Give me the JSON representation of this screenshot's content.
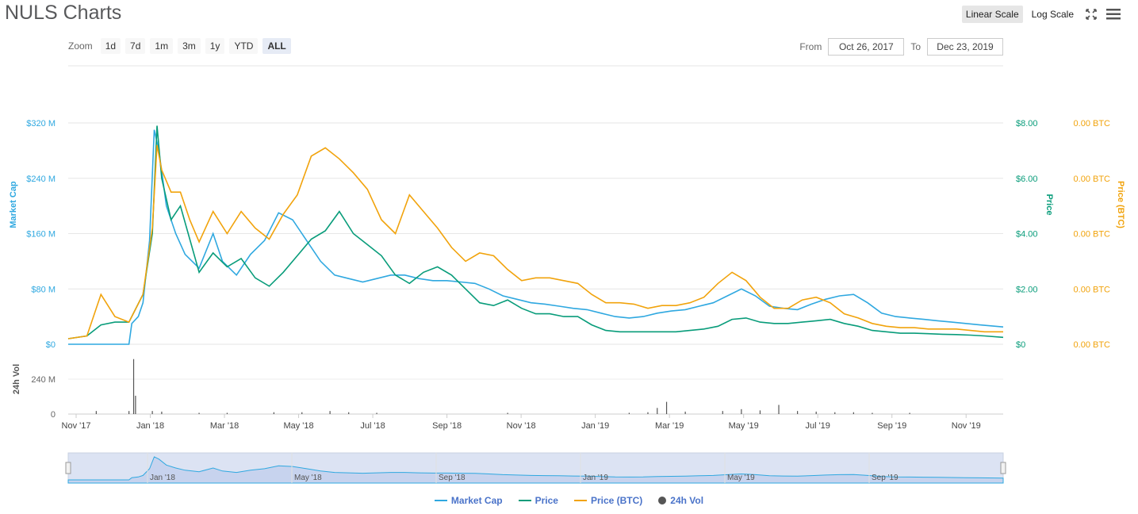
{
  "header": {
    "title": "NULS Charts"
  },
  "toolbar": {
    "linear_label": "Linear Scale",
    "log_label": "Log Scale",
    "fullscreen_icon": "expand-icon",
    "menu_icon": "hamburger-icon"
  },
  "zoom": {
    "label": "Zoom",
    "buttons": [
      "1d",
      "7d",
      "1m",
      "3m",
      "1y",
      "YTD",
      "ALL"
    ],
    "active": "ALL"
  },
  "range": {
    "from_label": "From",
    "from_value": "Oct 26, 2017",
    "to_label": "To",
    "to_value": "Dec 23, 2019"
  },
  "colors": {
    "market_cap": "#2fa8e0",
    "price": "#089c7a",
    "price_btc": "#f1a30c",
    "volume": "#555555"
  },
  "chart_data": {
    "type": "line",
    "x_ticks": [
      "Nov '17",
      "Jan '18",
      "Mar '18",
      "May '18",
      "Jul '18",
      "Sep '18",
      "Nov '18",
      "Jan '19",
      "Mar '19",
      "May '19",
      "Jul '19",
      "Sep '19",
      "Nov '19"
    ],
    "y_left": {
      "label": "Market Cap",
      "ticks": [
        "$0",
        "$80 M",
        "$160 M",
        "$240 M",
        "$320 M"
      ],
      "range": [
        0,
        320
      ]
    },
    "y_right_price": {
      "label": "Price",
      "ticks": [
        "$0",
        "$2.00",
        "$4.00",
        "$6.00",
        "$8.00"
      ],
      "range": [
        0,
        8
      ]
    },
    "y_right_btc": {
      "label": "Price (BTC)",
      "ticks": [
        "0.00 BTC",
        "0.00 BTC",
        "0.00 BTC",
        "0.00 BTC",
        "0.00 BTC"
      ]
    },
    "volume_axis": {
      "label": "24h Vol",
      "ticks": [
        "0",
        "240 M"
      ]
    },
    "navigator_ticks": [
      "Jan '18",
      "May '18",
      "Sep '18",
      "Jan '19",
      "May '19",
      "Sep '19"
    ],
    "series": [
      {
        "name": "Market Cap",
        "axis": "left",
        "points": [
          [
            0,
            0
          ],
          [
            0.05,
            0
          ],
          [
            0.065,
            0
          ],
          [
            0.068,
            30
          ],
          [
            0.075,
            40
          ],
          [
            0.08,
            60
          ],
          [
            0.087,
            150
          ],
          [
            0.092,
            310
          ],
          [
            0.097,
            280
          ],
          [
            0.105,
            200
          ],
          [
            0.115,
            160
          ],
          [
            0.125,
            130
          ],
          [
            0.14,
            110
          ],
          [
            0.155,
            160
          ],
          [
            0.165,
            120
          ],
          [
            0.18,
            100
          ],
          [
            0.195,
            130
          ],
          [
            0.21,
            150
          ],
          [
            0.225,
            190
          ],
          [
            0.24,
            180
          ],
          [
            0.255,
            150
          ],
          [
            0.27,
            120
          ],
          [
            0.285,
            100
          ],
          [
            0.3,
            95
          ],
          [
            0.315,
            90
          ],
          [
            0.33,
            95
          ],
          [
            0.345,
            100
          ],
          [
            0.36,
            100
          ],
          [
            0.375,
            95
          ],
          [
            0.39,
            92
          ],
          [
            0.405,
            92
          ],
          [
            0.42,
            90
          ],
          [
            0.435,
            88
          ],
          [
            0.45,
            80
          ],
          [
            0.465,
            70
          ],
          [
            0.48,
            65
          ],
          [
            0.495,
            60
          ],
          [
            0.51,
            58
          ],
          [
            0.525,
            55
          ],
          [
            0.54,
            52
          ],
          [
            0.555,
            50
          ],
          [
            0.57,
            45
          ],
          [
            0.585,
            40
          ],
          [
            0.6,
            38
          ],
          [
            0.615,
            40
          ],
          [
            0.63,
            45
          ],
          [
            0.645,
            48
          ],
          [
            0.66,
            50
          ],
          [
            0.675,
            55
          ],
          [
            0.69,
            60
          ],
          [
            0.705,
            70
          ],
          [
            0.72,
            80
          ],
          [
            0.735,
            70
          ],
          [
            0.75,
            55
          ],
          [
            0.765,
            52
          ],
          [
            0.78,
            50
          ],
          [
            0.795,
            58
          ],
          [
            0.81,
            65
          ],
          [
            0.825,
            70
          ],
          [
            0.84,
            72
          ],
          [
            0.855,
            60
          ],
          [
            0.87,
            45
          ],
          [
            0.885,
            40
          ],
          [
            0.9,
            38
          ],
          [
            0.915,
            36
          ],
          [
            0.93,
            34
          ],
          [
            0.945,
            32
          ],
          [
            0.96,
            30
          ],
          [
            0.975,
            28
          ],
          [
            1,
            25
          ]
        ]
      },
      {
        "name": "Price",
        "axis": "right",
        "points": [
          [
            0,
            0.2
          ],
          [
            0.02,
            0.3
          ],
          [
            0.035,
            0.7
          ],
          [
            0.05,
            0.8
          ],
          [
            0.065,
            0.8
          ],
          [
            0.08,
            1.8
          ],
          [
            0.09,
            4.0
          ],
          [
            0.095,
            7.9
          ],
          [
            0.1,
            6.0
          ],
          [
            0.11,
            4.5
          ],
          [
            0.12,
            5.0
          ],
          [
            0.13,
            3.8
          ],
          [
            0.14,
            2.6
          ],
          [
            0.155,
            3.3
          ],
          [
            0.17,
            2.8
          ],
          [
            0.185,
            3.1
          ],
          [
            0.2,
            2.4
          ],
          [
            0.215,
            2.1
          ],
          [
            0.23,
            2.6
          ],
          [
            0.245,
            3.2
          ],
          [
            0.26,
            3.8
          ],
          [
            0.275,
            4.1
          ],
          [
            0.29,
            4.8
          ],
          [
            0.305,
            4.0
          ],
          [
            0.32,
            3.6
          ],
          [
            0.335,
            3.2
          ],
          [
            0.35,
            2.5
          ],
          [
            0.365,
            2.2
          ],
          [
            0.38,
            2.6
          ],
          [
            0.395,
            2.8
          ],
          [
            0.41,
            2.5
          ],
          [
            0.425,
            2.0
          ],
          [
            0.44,
            1.5
          ],
          [
            0.455,
            1.4
          ],
          [
            0.47,
            1.6
          ],
          [
            0.485,
            1.3
          ],
          [
            0.5,
            1.1
          ],
          [
            0.515,
            1.1
          ],
          [
            0.53,
            1.0
          ],
          [
            0.545,
            1.0
          ],
          [
            0.56,
            0.7
          ],
          [
            0.575,
            0.5
          ],
          [
            0.59,
            0.45
          ],
          [
            0.605,
            0.45
          ],
          [
            0.62,
            0.45
          ],
          [
            0.635,
            0.45
          ],
          [
            0.65,
            0.45
          ],
          [
            0.665,
            0.5
          ],
          [
            0.68,
            0.55
          ],
          [
            0.695,
            0.65
          ],
          [
            0.71,
            0.9
          ],
          [
            0.725,
            0.95
          ],
          [
            0.74,
            0.8
          ],
          [
            0.755,
            0.75
          ],
          [
            0.77,
            0.75
          ],
          [
            0.785,
            0.8
          ],
          [
            0.8,
            0.85
          ],
          [
            0.815,
            0.9
          ],
          [
            0.83,
            0.75
          ],
          [
            0.845,
            0.65
          ],
          [
            0.86,
            0.5
          ],
          [
            0.875,
            0.45
          ],
          [
            0.89,
            0.4
          ],
          [
            0.905,
            0.4
          ],
          [
            0.92,
            0.38
          ],
          [
            0.935,
            0.36
          ],
          [
            0.95,
            0.35
          ],
          [
            0.965,
            0.33
          ],
          [
            0.98,
            0.3
          ],
          [
            1,
            0.25
          ]
        ]
      },
      {
        "name": "Price (BTC)",
        "axis": "right",
        "points": [
          [
            0,
            0.2
          ],
          [
            0.02,
            0.3
          ],
          [
            0.035,
            1.8
          ],
          [
            0.05,
            1.0
          ],
          [
            0.065,
            0.8
          ],
          [
            0.08,
            1.8
          ],
          [
            0.09,
            4.2
          ],
          [
            0.095,
            7.2
          ],
          [
            0.1,
            6.3
          ],
          [
            0.11,
            5.5
          ],
          [
            0.12,
            5.5
          ],
          [
            0.13,
            4.5
          ],
          [
            0.14,
            3.7
          ],
          [
            0.155,
            4.8
          ],
          [
            0.17,
            4.0
          ],
          [
            0.185,
            4.8
          ],
          [
            0.2,
            4.2
          ],
          [
            0.215,
            3.8
          ],
          [
            0.23,
            4.7
          ],
          [
            0.245,
            5.4
          ],
          [
            0.26,
            6.8
          ],
          [
            0.275,
            7.1
          ],
          [
            0.29,
            6.7
          ],
          [
            0.305,
            6.2
          ],
          [
            0.32,
            5.6
          ],
          [
            0.335,
            4.5
          ],
          [
            0.35,
            4.0
          ],
          [
            0.365,
            5.4
          ],
          [
            0.38,
            4.8
          ],
          [
            0.395,
            4.2
          ],
          [
            0.41,
            3.5
          ],
          [
            0.425,
            3.0
          ],
          [
            0.44,
            3.3
          ],
          [
            0.455,
            3.2
          ],
          [
            0.47,
            2.7
          ],
          [
            0.485,
            2.3
          ],
          [
            0.5,
            2.4
          ],
          [
            0.515,
            2.4
          ],
          [
            0.53,
            2.3
          ],
          [
            0.545,
            2.2
          ],
          [
            0.56,
            1.8
          ],
          [
            0.575,
            1.5
          ],
          [
            0.59,
            1.5
          ],
          [
            0.605,
            1.45
          ],
          [
            0.62,
            1.3
          ],
          [
            0.635,
            1.4
          ],
          [
            0.65,
            1.4
          ],
          [
            0.665,
            1.5
          ],
          [
            0.68,
            1.7
          ],
          [
            0.695,
            2.2
          ],
          [
            0.71,
            2.6
          ],
          [
            0.725,
            2.3
          ],
          [
            0.74,
            1.7
          ],
          [
            0.755,
            1.3
          ],
          [
            0.77,
            1.3
          ],
          [
            0.785,
            1.6
          ],
          [
            0.8,
            1.7
          ],
          [
            0.815,
            1.5
          ],
          [
            0.83,
            1.1
          ],
          [
            0.845,
            0.95
          ],
          [
            0.86,
            0.75
          ],
          [
            0.875,
            0.65
          ],
          [
            0.89,
            0.6
          ],
          [
            0.905,
            0.6
          ],
          [
            0.92,
            0.55
          ],
          [
            0.935,
            0.55
          ],
          [
            0.95,
            0.55
          ],
          [
            0.965,
            0.5
          ],
          [
            0.98,
            0.45
          ],
          [
            1,
            0.45
          ]
        ]
      }
    ],
    "volume": [
      [
        0.03,
        0.05
      ],
      [
        0.065,
        0.05
      ],
      [
        0.07,
        0.9
      ],
      [
        0.072,
        0.3
      ],
      [
        0.09,
        0.05
      ],
      [
        0.1,
        0.04
      ],
      [
        0.14,
        0.02
      ],
      [
        0.17,
        0.02
      ],
      [
        0.22,
        0.03
      ],
      [
        0.25,
        0.03
      ],
      [
        0.28,
        0.05
      ],
      [
        0.3,
        0.03
      ],
      [
        0.33,
        0.02
      ],
      [
        0.47,
        0.02
      ],
      [
        0.6,
        0.02
      ],
      [
        0.62,
        0.03
      ],
      [
        0.63,
        0.1
      ],
      [
        0.64,
        0.2
      ],
      [
        0.66,
        0.04
      ],
      [
        0.7,
        0.05
      ],
      [
        0.72,
        0.08
      ],
      [
        0.74,
        0.06
      ],
      [
        0.76,
        0.15
      ],
      [
        0.78,
        0.05
      ],
      [
        0.8,
        0.04
      ],
      [
        0.82,
        0.03
      ],
      [
        0.84,
        0.03
      ],
      [
        0.86,
        0.02
      ],
      [
        0.9,
        0.02
      ]
    ],
    "legend": [
      "Market Cap",
      "Price",
      "Price (BTC)",
      "24h Vol"
    ],
    "legend_position": "bottom"
  }
}
